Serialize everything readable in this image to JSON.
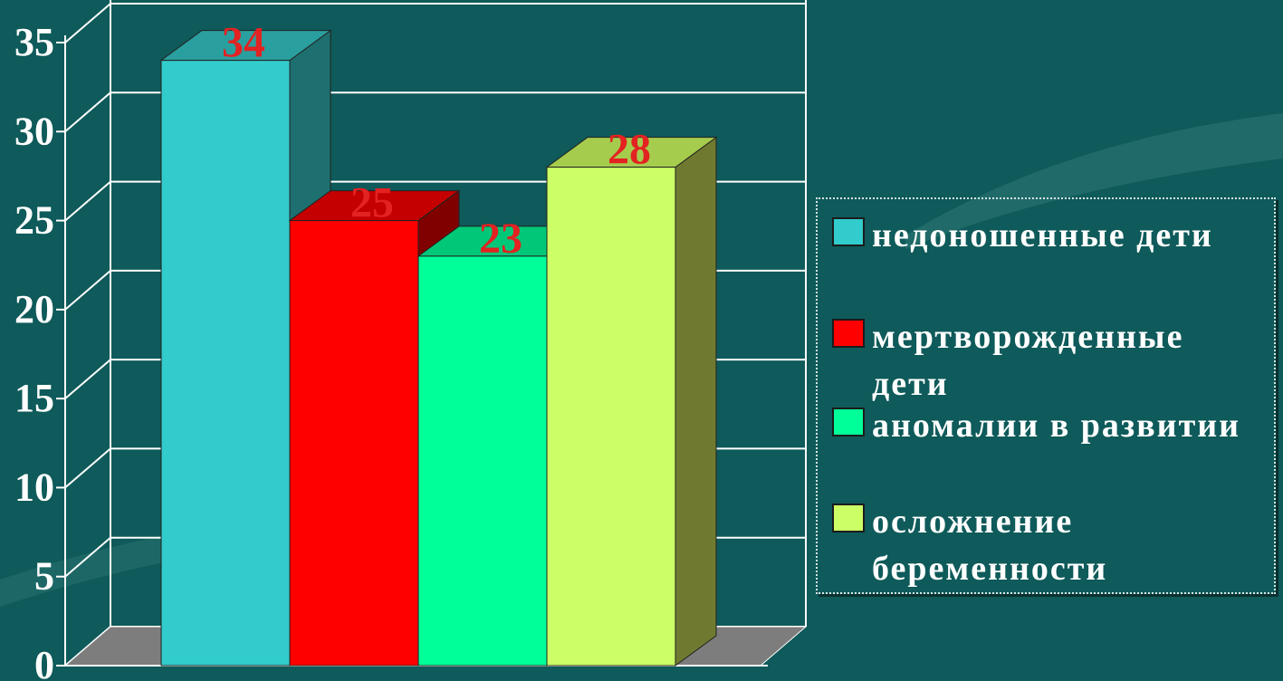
{
  "chart_data": {
    "type": "bar",
    "categories": [
      "недоношенные дети",
      "мертворожденные дети",
      "аномалии в развитии",
      "осложнение беременности"
    ],
    "values": [
      34,
      25,
      23,
      28
    ],
    "data_labels": [
      "34",
      "25",
      "23",
      "28"
    ],
    "colors": [
      "#33cccc",
      "#ff0000",
      "#00ff99",
      "#ccff66"
    ],
    "top_colors": [
      "#2a9f9f",
      "#c40000",
      "#00c878",
      "#a6cc4d"
    ],
    "side_colors": [
      "#1e6f6f",
      "#800000",
      "#008f5a",
      "#6f7a30"
    ],
    "ylim": [
      0,
      35
    ],
    "yticks": [
      "0",
      "5",
      "10",
      "15",
      "20",
      "25",
      "30",
      "35"
    ],
    "title": "",
    "xlabel": "",
    "ylabel": "",
    "grid": true,
    "legend": {
      "placement": "right",
      "entries": [
        "недоношенные дети",
        "мертворожденные дети",
        "аномалии в развитии",
        "осложнение беременности"
      ]
    }
  }
}
